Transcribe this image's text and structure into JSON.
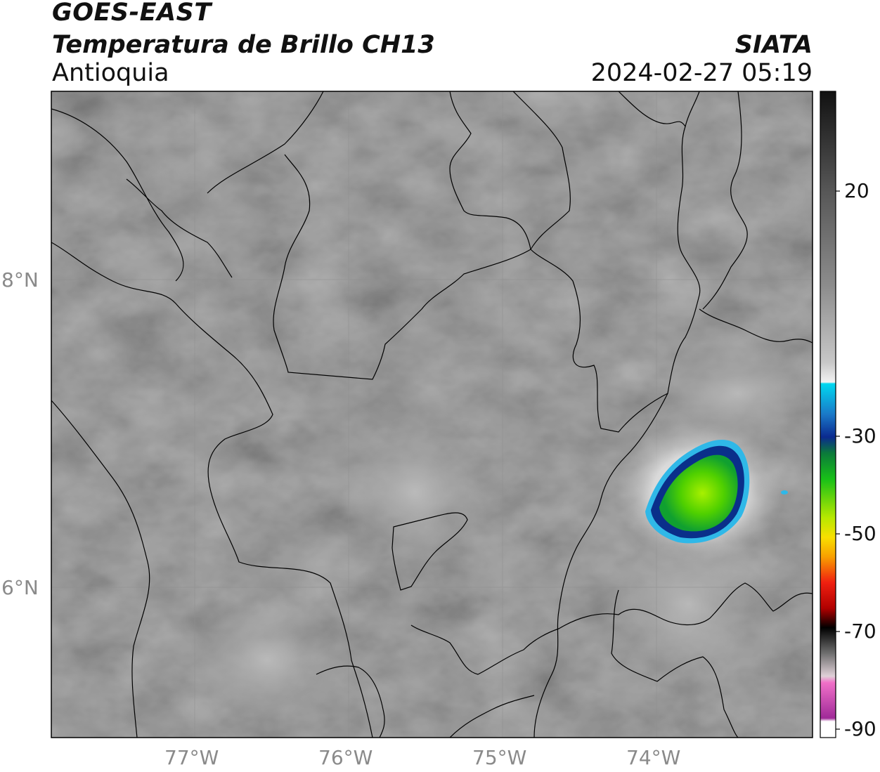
{
  "header": {
    "satellite": "GOES-EAST",
    "product": "Temperatura de Brillo CH13",
    "region": "Antioquia",
    "organization": "SIATA",
    "datetime": "2024-02-27 05:19"
  },
  "map": {
    "lat_labels": [
      "8°N",
      "6°N"
    ],
    "lon_labels": [
      "77°W",
      "76°W",
      "75°W",
      "74°W"
    ],
    "colors": {
      "background_gray": "#6e6e6e",
      "border": "#000000",
      "gridline": "#8f8f8f",
      "cloud_core": "#7fe000",
      "cloud_ring": "#0a2f8a",
      "cloud_edge": "#2fb8e8"
    }
  },
  "colorbar": {
    "tick_labels": [
      "20",
      "-30",
      "-50",
      "-70",
      "-90"
    ],
    "colors": {
      "top": "#111111",
      "cyan": "#00d8f0",
      "blue": "#0b2a8f",
      "green": "#00a000",
      "yellow": "#f8e000",
      "red": "#e01010",
      "pink": "#e060c0",
      "purple": "#8a1a90"
    }
  }
}
